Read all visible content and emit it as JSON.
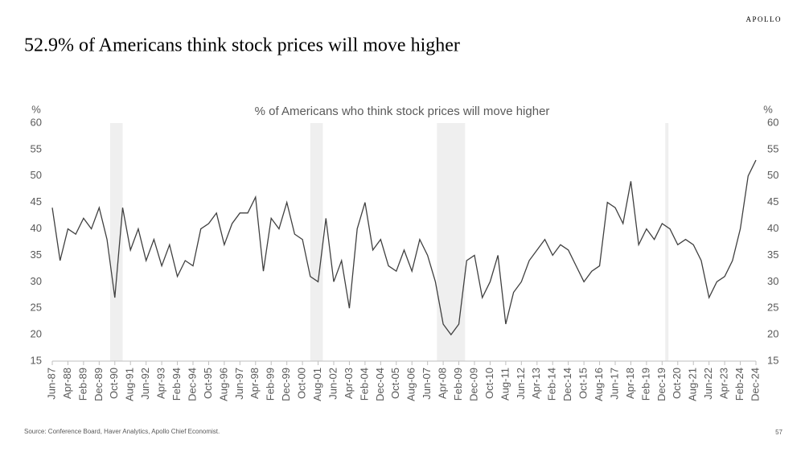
{
  "logo": "APOLLO",
  "slide_title": "52.9% of Americans think stock prices will move higher",
  "source": "Source: Conference Board, Haver Analytics, Apollo Chief Economist.",
  "page_number": "57",
  "chart_data": {
    "type": "line",
    "title": "% of Americans who think stock prices will move higher",
    "y_label": "%",
    "y2_label": "%",
    "color": "#404040",
    "x": [
      "Jun-87",
      null,
      "Apr-88",
      null,
      "Feb-89",
      null,
      "Dec-89",
      null,
      "Oct-90",
      null,
      "Aug-91",
      null,
      "Jun-92",
      null,
      "Apr-93",
      null,
      "Feb-94",
      null,
      "Dec-94",
      null,
      "Oct-95",
      null,
      "Aug-96",
      null,
      "Jun-97",
      null,
      "Apr-98",
      null,
      "Feb-99",
      null,
      "Dec-99",
      null,
      "Oct-00",
      null,
      "Aug-01",
      null,
      "Jun-02",
      null,
      "Apr-03",
      null,
      "Feb-04",
      null,
      "Dec-04",
      null,
      "Oct-05",
      null,
      "Aug-06",
      null,
      "Jun-07",
      null,
      "Apr-08",
      null,
      "Feb-09",
      null,
      "Dec-09",
      null,
      "Oct-10",
      null,
      "Aug-11",
      null,
      "Jun-12",
      null,
      "Apr-13",
      null,
      "Feb-14",
      null,
      "Dec-14",
      null,
      "Oct-15",
      null,
      "Aug-16",
      null,
      "Jun-17",
      null,
      "Apr-18",
      null,
      "Feb-19",
      null,
      "Dec-19",
      null,
      "Oct-20",
      null,
      "Aug-21",
      null,
      "Jun-22",
      null,
      "Apr-23",
      null,
      "Feb-24",
      null,
      "Dec-24"
    ],
    "values": [
      44,
      34,
      40,
      39,
      42,
      40,
      44,
      38,
      27,
      44,
      36,
      40,
      34,
      38,
      33,
      37,
      31,
      34,
      33,
      40,
      41,
      43,
      37,
      41,
      43,
      43,
      46,
      32,
      42,
      40,
      45,
      39,
      38,
      31,
      30,
      42,
      30,
      34,
      25,
      40,
      45,
      36,
      38,
      33,
      32,
      36,
      32,
      38,
      35,
      30,
      22,
      20,
      22,
      34,
      35,
      27,
      30,
      35,
      22,
      28,
      30,
      34,
      36,
      38,
      35,
      37,
      36,
      33,
      30,
      32,
      33,
      45,
      44,
      41,
      49,
      37,
      40,
      38,
      41,
      40,
      37,
      38,
      37,
      34,
      27,
      30,
      31,
      34,
      40,
      50,
      53
    ],
    "shaded_periods": [
      [
        "Jul-90",
        "Mar-91"
      ],
      [
        "Mar-01",
        "Nov-01"
      ],
      [
        "Dec-07",
        "Jun-09"
      ],
      [
        "Feb-20",
        "Apr-20"
      ]
    ],
    "ylim": [
      15,
      60
    ],
    "yticks": [
      15,
      20,
      25,
      30,
      35,
      40,
      45,
      50,
      55,
      60
    ],
    "y2lim": [
      15,
      60
    ],
    "y2ticks": [
      15,
      20,
      25,
      30,
      35,
      40,
      45,
      50,
      55,
      60
    ],
    "grid": false
  }
}
